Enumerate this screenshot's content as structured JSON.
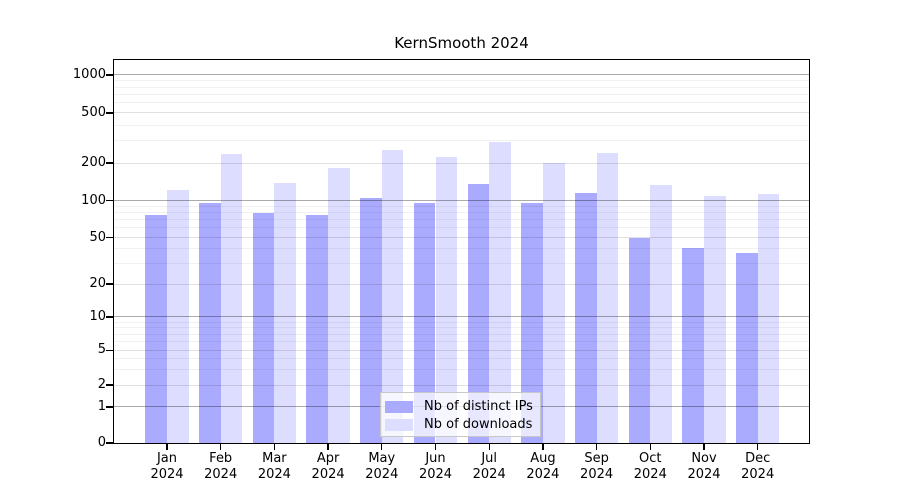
{
  "chart_data": {
    "type": "bar",
    "title": "KernSmooth 2024",
    "categories": [
      "Jan 2024",
      "Feb 2024",
      "Mar 2024",
      "Apr 2024",
      "May 2024",
      "Jun 2024",
      "Jul 2024",
      "Aug 2024",
      "Sep 2024",
      "Oct 2024",
      "Nov 2024",
      "Dec 2024"
    ],
    "series": [
      {
        "name": "Nb of distinct IPs",
        "color": "#aaaaff",
        "values": [
          76,
          95,
          79,
          77,
          105,
          96,
          136,
          96,
          115,
          50,
          41,
          37
        ]
      },
      {
        "name": "Nb of downloads",
        "color": "#ddddff",
        "values": [
          121,
          237,
          138,
          182,
          255,
          224,
          296,
          199,
          240,
          134,
          108,
          112
        ]
      }
    ],
    "xlabel": "",
    "ylabel": "",
    "yticks": [
      0,
      1,
      2,
      5,
      10,
      20,
      50,
      100,
      200,
      500,
      1000
    ],
    "y_scale": "log-like (log10(value+1)), 0 at baseline",
    "ylim": [
      0,
      1330
    ],
    "grid": "on",
    "grid_minor_values": [
      3,
      4,
      6,
      7,
      8,
      9,
      30,
      40,
      60,
      70,
      80,
      90,
      300,
      400,
      600,
      700,
      800,
      900
    ],
    "legend_position": "bottom-center",
    "background": "#ffffff",
    "border_color": "#000000"
  }
}
